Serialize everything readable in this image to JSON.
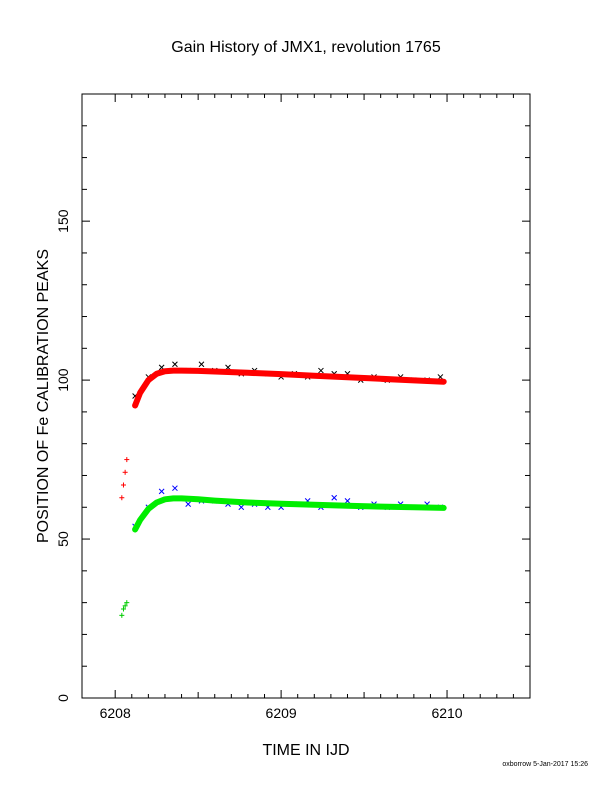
{
  "chart_data": {
    "type": "scatter",
    "title": "Gain History of JMX1, revolution 1765",
    "xlabel": "TIME IN IJD",
    "ylabel": "POSITION OF Fe CALIBRATION PEAKS",
    "xlim": [
      6207.8,
      6210.5
    ],
    "ylim": [
      0,
      190
    ],
    "xticks": [
      6208,
      6209,
      6210
    ],
    "yticks": [
      0,
      50,
      100,
      150
    ],
    "grid": false,
    "series": [
      {
        "kind": "measured-upper",
        "color": "#000000",
        "marker": "x",
        "x": [
          6208.12,
          6208.2,
          6208.28,
          6208.36,
          6208.44,
          6208.52,
          6208.6,
          6208.68,
          6208.76,
          6208.84,
          6208.92,
          6209.0,
          6209.08,
          6209.16,
          6209.24,
          6209.32,
          6209.4,
          6209.48,
          6209.56,
          6209.64,
          6209.72,
          6209.8,
          6209.88,
          6209.96
        ],
        "y": [
          95,
          101,
          104,
          105,
          103,
          105,
          103,
          104,
          102,
          103,
          102,
          101,
          102,
          101,
          103,
          102,
          102,
          100,
          101,
          100,
          101,
          100,
          100,
          101
        ]
      },
      {
        "kind": "fit-upper",
        "color": "#ff0000",
        "x": [
          6208.12,
          6208.15,
          6208.2,
          6208.25,
          6208.3,
          6208.35,
          6208.4,
          6208.5,
          6208.6,
          6208.8,
          6209.0,
          6209.2,
          6209.4,
          6209.6,
          6209.8,
          6209.98
        ],
        "y": [
          92,
          96,
          100,
          102,
          102.8,
          103,
          103,
          102.9,
          102.7,
          102.3,
          101.9,
          101.4,
          100.9,
          100.4,
          99.9,
          99.5
        ]
      },
      {
        "kind": "early-upper",
        "color": "#ff0000",
        "marker": "+",
        "x": [
          6208.04,
          6208.05,
          6208.06,
          6208.07
        ],
        "y": [
          63,
          67,
          71,
          75
        ]
      },
      {
        "kind": "measured-lower",
        "color": "#0000ff",
        "marker": "x",
        "x": [
          6208.12,
          6208.2,
          6208.28,
          6208.36,
          6208.44,
          6208.52,
          6208.6,
          6208.68,
          6208.76,
          6208.84,
          6208.92,
          6209.0,
          6209.08,
          6209.16,
          6209.24,
          6209.32,
          6209.4,
          6209.48,
          6209.56,
          6209.64,
          6209.72,
          6209.8,
          6209.88,
          6209.96
        ],
        "y": [
          54,
          60,
          65,
          66,
          61,
          62,
          62,
          61,
          60,
          61,
          60,
          60,
          61,
          62,
          60,
          63,
          62,
          60,
          61,
          60,
          61,
          60,
          61,
          60
        ]
      },
      {
        "kind": "fit-lower",
        "color": "#00ee00",
        "x": [
          6208.12,
          6208.15,
          6208.2,
          6208.25,
          6208.3,
          6208.35,
          6208.4,
          6208.5,
          6208.6,
          6208.8,
          6209.0,
          6209.2,
          6209.4,
          6209.6,
          6209.8,
          6209.98
        ],
        "y": [
          53,
          56,
          59.5,
          61.5,
          62.5,
          62.8,
          62.8,
          62.5,
          62.1,
          61.5,
          61.1,
          60.8,
          60.5,
          60.2,
          60,
          59.8
        ]
      },
      {
        "kind": "early-lower",
        "color": "#00cc00",
        "marker": "+",
        "x": [
          6208.04,
          6208.05,
          6208.06,
          6208.07
        ],
        "y": [
          26,
          28,
          29,
          30
        ]
      }
    ]
  },
  "footer": "oxborrow  5-Jan-2017 15:26"
}
